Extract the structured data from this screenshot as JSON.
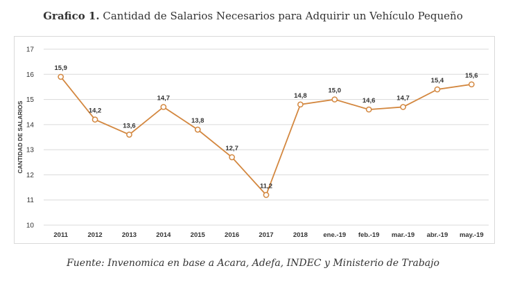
{
  "header": {
    "title_prefix": "Grafico 1.",
    "title_text": "Cantidad de Salarios Necesarios para Adquirir un Vehículo Pequeño"
  },
  "footer": {
    "source": "Fuente: Invenomica en base a Acara, Adefa, INDEC y Ministerio de Trabajo"
  },
  "chart_data": {
    "type": "line",
    "title": "",
    "xlabel": "",
    "ylabel": "CANTIDAD DE SALARIOS",
    "ylim": [
      10,
      17
    ],
    "yticks": [
      10,
      11,
      12,
      13,
      14,
      15,
      16,
      17
    ],
    "grid": true,
    "categories": [
      "2011",
      "2012",
      "2013",
      "2014",
      "2015",
      "2016",
      "2017",
      "2018",
      "ene.-19",
      "feb.-19",
      "mar.-19",
      "abr.-19",
      "may.-19"
    ],
    "values": [
      15.9,
      14.2,
      13.6,
      14.7,
      13.8,
      12.7,
      11.2,
      14.8,
      15.0,
      14.6,
      14.7,
      15.4,
      15.6
    ],
    "labels": [
      "15,9",
      "14,2",
      "13,6",
      "14,7",
      "13,8",
      "12,7",
      "11,2",
      "14,8",
      "15,0",
      "14,6",
      "14,7",
      "15,4",
      "15,6"
    ],
    "line_color": "#d3873f",
    "grid_color": "#d9d9d9"
  }
}
